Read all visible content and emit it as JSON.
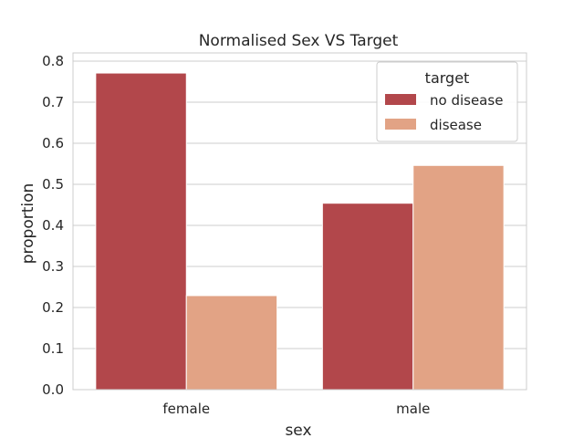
{
  "chart_data": {
    "type": "bar",
    "title": "Normalised Sex VS Target",
    "xlabel": "sex",
    "ylabel": "proportion",
    "categories": [
      "female",
      "male"
    ],
    "series": [
      {
        "name": "no disease",
        "values": [
          0.771,
          0.454
        ],
        "color": "#b2474b"
      },
      {
        "name": "disease",
        "values": [
          0.229,
          0.546
        ],
        "color": "#e2a385"
      }
    ],
    "ylim": [
      0,
      0.82
    ],
    "yticks": [
      0.0,
      0.1,
      0.2,
      0.3,
      0.4,
      0.5,
      0.6,
      0.7,
      0.8
    ],
    "ytick_labels": [
      "0.0",
      "0.1",
      "0.2",
      "0.3",
      "0.4",
      "0.5",
      "0.6",
      "0.7",
      "0.8"
    ],
    "grid": "horizontal",
    "legend": {
      "title": "target",
      "placement": "top-right"
    }
  }
}
